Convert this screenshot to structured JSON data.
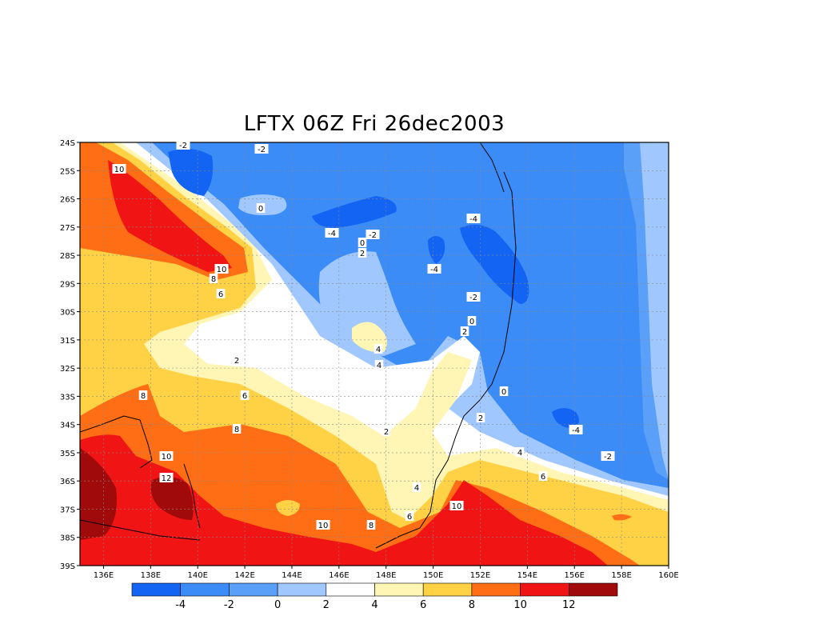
{
  "title": "LFTX 06Z Fri 26dec2003",
  "map": {
    "lat_labels": [
      "24S",
      "25S",
      "26S",
      "27S",
      "28S",
      "29S",
      "30S",
      "31S",
      "32S",
      "33S",
      "34S",
      "35S",
      "36S",
      "37S",
      "38S",
      "39S"
    ],
    "lon_labels": [
      "136E",
      "138E",
      "140E",
      "142E",
      "144E",
      "146E",
      "148E",
      "150E",
      "152E",
      "154E",
      "156E",
      "158E",
      "160E"
    ],
    "lon_range": [
      135,
      160
    ],
    "lat_range": [
      -24,
      -39
    ],
    "grid": true
  },
  "colorbar": {
    "labels": [
      "-4",
      "-2",
      "0",
      "2",
      "4",
      "6",
      "8",
      "10",
      "12"
    ],
    "colors": [
      "#1464f4",
      "#3c8cf8",
      "#5aa0f8",
      "#a0c8ff",
      "#ffffff",
      "#fff5b4",
      "#ffd246",
      "#ff6e14",
      "#f01414",
      "#a00a0a"
    ]
  },
  "contour_labels": [
    "-2",
    "-2",
    "10",
    "0",
    "-4",
    "-2",
    "-4",
    "0",
    "2",
    "-4",
    "10",
    "8",
    "6",
    "-2",
    "0",
    "2",
    "4",
    "4",
    "2",
    "8",
    "6",
    "2",
    "0",
    "2",
    "-4",
    "8",
    "4",
    "-2",
    "10",
    "12",
    "6",
    "4",
    "6",
    "10",
    "8",
    "10"
  ]
}
